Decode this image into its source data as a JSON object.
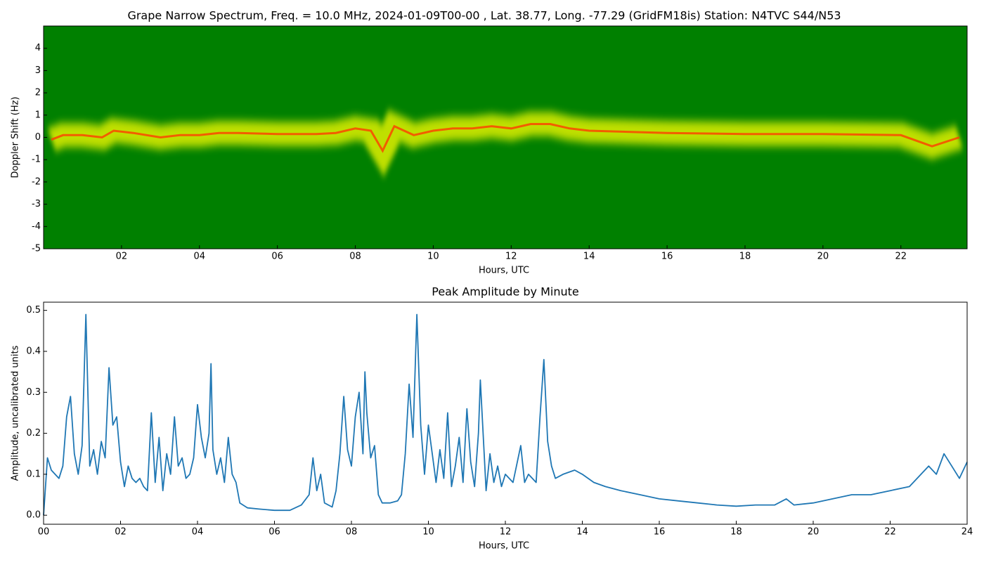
{
  "chart_data": [
    {
      "type": "spectrogram",
      "title": "Grape Narrow Spectrum, Freq. = 10.0 MHz, 2024-01-09T00-00 , Lat.  38.77, Long. -77.29 (GridFM18is) Station: N4TVC S44/N53",
      "x_label": "Hours, UTC",
      "y_label": "Doppler Shift (Hz)",
      "background_color": "#008000",
      "band_color": "#ffff00",
      "color": "#ff3c00",
      "x": [
        0.2,
        0.5,
        1.0,
        1.5,
        1.8,
        2.3,
        3.0,
        3.5,
        4.0,
        4.5,
        5.0,
        6.0,
        7.0,
        7.5,
        8.0,
        8.4,
        8.7,
        9.0,
        9.5,
        10.0,
        10.5,
        11.0,
        11.5,
        12.0,
        12.5,
        13.0,
        13.5,
        14.0,
        16.0,
        18.0,
        20.0,
        22.0,
        22.8,
        23.5
      ],
      "values": [
        -0.1,
        0.1,
        0.1,
        0.0,
        0.3,
        0.2,
        0.0,
        0.1,
        0.1,
        0.2,
        0.2,
        0.15,
        0.15,
        0.2,
        0.4,
        0.3,
        -0.6,
        0.5,
        0.1,
        0.3,
        0.4,
        0.4,
        0.5,
        0.4,
        0.6,
        0.6,
        0.4,
        0.3,
        0.2,
        0.15,
        0.15,
        0.1,
        -0.4,
        0.0
      ],
      "xlim": [
        0,
        23.7
      ],
      "ylim": [
        -5,
        5
      ],
      "xticks": [
        {
          "value": 2,
          "label": "02"
        },
        {
          "value": 4,
          "label": "04"
        },
        {
          "value": 6,
          "label": "06"
        },
        {
          "value": 8,
          "label": "08"
        },
        {
          "value": 10,
          "label": "10"
        },
        {
          "value": 12,
          "label": "12"
        },
        {
          "value": 14,
          "label": "14"
        },
        {
          "value": 16,
          "label": "16"
        },
        {
          "value": 18,
          "label": "18"
        },
        {
          "value": 20,
          "label": "20"
        },
        {
          "value": 22,
          "label": "22"
        }
      ],
      "yticks": [
        -5,
        -4,
        -3,
        -2,
        -1,
        0,
        1,
        2,
        3,
        4
      ]
    },
    {
      "type": "line",
      "title": "Peak Amplitude by Minute",
      "x_label": "Hours, UTC",
      "y_label": "Amplitude, uncalibrated units",
      "color": "#1f77b4",
      "x": [
        0.0,
        0.1,
        0.2,
        0.3,
        0.4,
        0.5,
        0.6,
        0.7,
        0.8,
        0.9,
        1.0,
        1.1,
        1.2,
        1.3,
        1.4,
        1.5,
        1.6,
        1.7,
        1.8,
        1.9,
        2.0,
        2.1,
        2.2,
        2.3,
        2.4,
        2.5,
        2.6,
        2.7,
        2.8,
        2.9,
        3.0,
        3.1,
        3.2,
        3.3,
        3.4,
        3.5,
        3.6,
        3.7,
        3.8,
        3.9,
        4.0,
        4.1,
        4.2,
        4.3,
        4.35,
        4.4,
        4.5,
        4.6,
        4.7,
        4.8,
        4.9,
        5.0,
        5.1,
        5.3,
        5.6,
        6.0,
        6.4,
        6.7,
        6.9,
        7.0,
        7.1,
        7.2,
        7.3,
        7.5,
        7.6,
        7.7,
        7.8,
        7.9,
        8.0,
        8.1,
        8.2,
        8.3,
        8.35,
        8.4,
        8.5,
        8.6,
        8.7,
        8.8,
        9.0,
        9.2,
        9.3,
        9.4,
        9.5,
        9.6,
        9.7,
        9.8,
        9.9,
        10.0,
        10.1,
        10.2,
        10.3,
        10.4,
        10.5,
        10.6,
        10.7,
        10.8,
        10.9,
        11.0,
        11.1,
        11.2,
        11.3,
        11.35,
        11.5,
        11.6,
        11.7,
        11.8,
        11.9,
        12.0,
        12.1,
        12.2,
        12.4,
        12.5,
        12.6,
        12.8,
        12.9,
        13.0,
        13.1,
        13.2,
        13.3,
        13.5,
        13.8,
        14.0,
        14.3,
        14.6,
        15.0,
        15.5,
        16.0,
        16.5,
        17.0,
        17.5,
        18.0,
        18.5,
        19.0,
        19.3,
        19.5,
        20.0,
        20.5,
        21.0,
        21.5,
        22.0,
        22.5,
        23.0,
        23.2,
        23.4,
        23.6,
        23.8,
        24.0
      ],
      "values": [
        0.0,
        0.14,
        0.11,
        0.1,
        0.09,
        0.12,
        0.24,
        0.29,
        0.15,
        0.1,
        0.17,
        0.49,
        0.12,
        0.16,
        0.1,
        0.18,
        0.14,
        0.36,
        0.22,
        0.24,
        0.13,
        0.07,
        0.12,
        0.09,
        0.08,
        0.09,
        0.07,
        0.06,
        0.25,
        0.08,
        0.19,
        0.06,
        0.15,
        0.1,
        0.24,
        0.12,
        0.14,
        0.09,
        0.1,
        0.14,
        0.27,
        0.19,
        0.14,
        0.2,
        0.37,
        0.16,
        0.1,
        0.14,
        0.08,
        0.19,
        0.1,
        0.08,
        0.03,
        0.018,
        0.015,
        0.012,
        0.012,
        0.025,
        0.05,
        0.14,
        0.06,
        0.1,
        0.03,
        0.02,
        0.06,
        0.15,
        0.29,
        0.16,
        0.12,
        0.24,
        0.3,
        0.15,
        0.35,
        0.25,
        0.14,
        0.17,
        0.05,
        0.03,
        0.03,
        0.035,
        0.05,
        0.15,
        0.32,
        0.19,
        0.49,
        0.22,
        0.1,
        0.22,
        0.15,
        0.08,
        0.16,
        0.09,
        0.25,
        0.07,
        0.12,
        0.19,
        0.08,
        0.26,
        0.13,
        0.07,
        0.2,
        0.33,
        0.06,
        0.15,
        0.08,
        0.12,
        0.07,
        0.1,
        0.09,
        0.08,
        0.17,
        0.08,
        0.1,
        0.08,
        0.24,
        0.38,
        0.18,
        0.12,
        0.09,
        0.1,
        0.11,
        0.1,
        0.08,
        0.07,
        0.06,
        0.05,
        0.04,
        0.035,
        0.03,
        0.025,
        0.022,
        0.025,
        0.025,
        0.04,
        0.025,
        0.03,
        0.04,
        0.05,
        0.05,
        0.06,
        0.07,
        0.12,
        0.1,
        0.15,
        0.12,
        0.09,
        0.13
      ],
      "xlim": [
        0,
        24
      ],
      "ylim": [
        -0.022,
        0.52
      ],
      "xticks": [
        {
          "value": 0,
          "label": "00"
        },
        {
          "value": 2,
          "label": "02"
        },
        {
          "value": 4,
          "label": "04"
        },
        {
          "value": 6,
          "label": "06"
        },
        {
          "value": 8,
          "label": "08"
        },
        {
          "value": 10,
          "label": "10"
        },
        {
          "value": 12,
          "label": "12"
        },
        {
          "value": 14,
          "label": "14"
        },
        {
          "value": 16,
          "label": "16"
        },
        {
          "value": 18,
          "label": "18"
        },
        {
          "value": 20,
          "label": "20"
        },
        {
          "value": 22,
          "label": "22"
        },
        {
          "value": 24,
          "label": "24"
        }
      ],
      "yticks": [
        {
          "value": 0,
          "label": "0.0"
        },
        {
          "value": 0.1,
          "label": "0.1"
        },
        {
          "value": 0.2,
          "label": "0.2"
        },
        {
          "value": 0.3,
          "label": "0.3"
        },
        {
          "value": 0.4,
          "label": "0.4"
        },
        {
          "value": 0.5,
          "label": "0.5"
        }
      ]
    }
  ]
}
